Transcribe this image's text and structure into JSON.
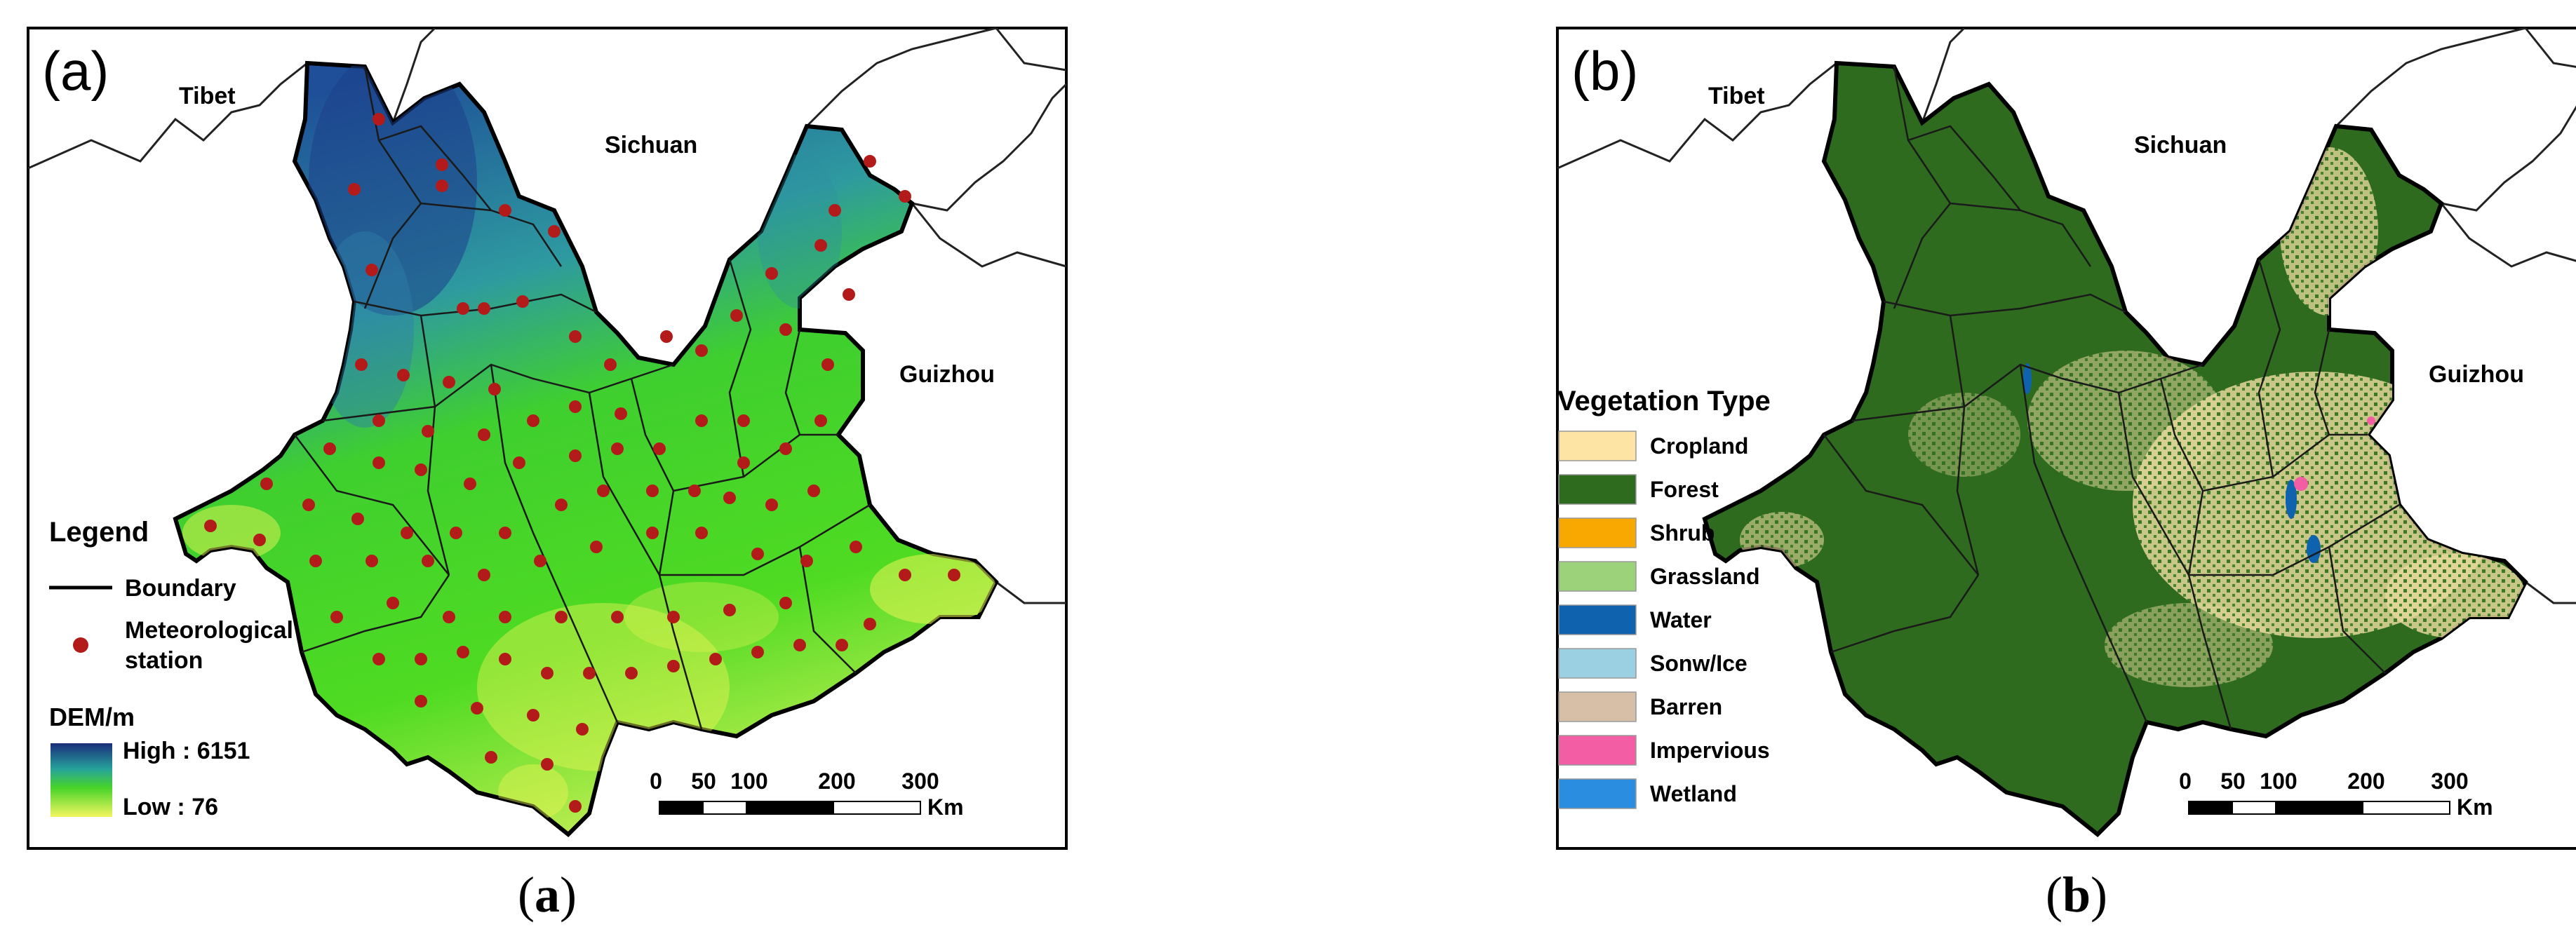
{
  "panel_a": {
    "label": "(a)",
    "regions": {
      "tibet": "Tibet",
      "sichuan": "Sichuan",
      "guizhou": "Guizhou"
    },
    "legend": {
      "title": "Legend",
      "boundary": "Boundary",
      "station_line1": "Meteorological",
      "station_line2": "station",
      "dem_title": "DEM/m",
      "high": "High : 6151",
      "low": "Low : 76"
    },
    "scale": {
      "ticks": [
        "0",
        "50",
        "100",
        "200",
        "300"
      ],
      "unit": "Km"
    },
    "caption": "a",
    "colors": {
      "low": "#e6f55a",
      "mid": "#3fd12a",
      "high": "#1e3f8c",
      "station": "#b31b1b"
    }
  },
  "panel_b": {
    "label": "(b)",
    "regions": {
      "tibet": "Tibet",
      "sichuan": "Sichuan",
      "guizhou": "Guizhou"
    },
    "legend": {
      "title": "Vegetation Type",
      "items": [
        {
          "label": "Cropland",
          "color": "#fde4a4"
        },
        {
          "label": "Forest",
          "color": "#2e6b1f"
        },
        {
          "label": "Shrub",
          "color": "#f8a800"
        },
        {
          "label": "Grassland",
          "color": "#9bd27a"
        },
        {
          "label": "Water",
          "color": "#0f62ad"
        },
        {
          "label": "Sonw/Ice",
          "color": "#9ad0e2"
        },
        {
          "label": "Barren",
          "color": "#d6bfa6"
        },
        {
          "label": "Impervious",
          "color": "#f25da4"
        },
        {
          "label": "Wetland",
          "color": "#2a8de0"
        }
      ]
    },
    "scale": {
      "ticks": [
        "0",
        "50",
        "100",
        "200",
        "300"
      ],
      "unit": "Km"
    },
    "caption": "b"
  }
}
